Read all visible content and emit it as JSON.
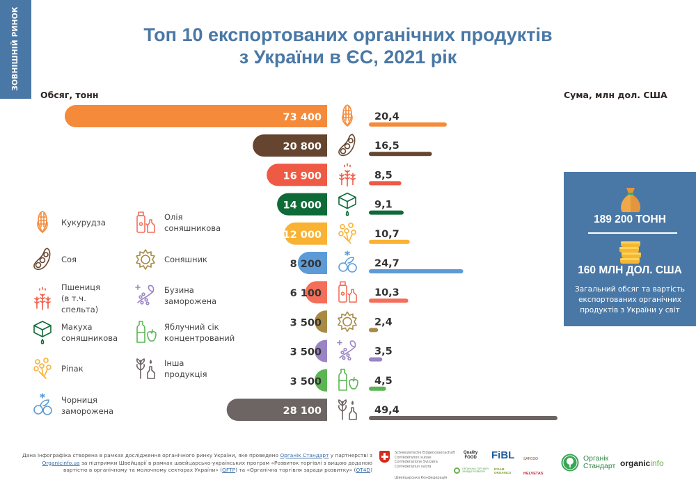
{
  "side_tab": "ЗОВНІШНІЙ РИНОК",
  "title_line1": "Топ 10 експортованих органічних продуктів",
  "title_line2": "з України в ЄС, 2021 рік",
  "chart_data": {
    "type": "bar",
    "title": "Топ 10 експортованих органічних продуктів з України в ЄС, 2021 рік",
    "left_axis_label": "Обсяг, тонн",
    "right_axis_label": "Сума, млн дол. США",
    "categories": [
      "Кукурудза",
      "Соя",
      "Пшениця (в т.ч. спельта)",
      "Макуха соняшникова",
      "Ріпак",
      "Чорниця заморожена",
      "Олія соняшникова",
      "Соняшник",
      "Бузина заморожена",
      "Яблучний сік концентрований",
      "Інша продукція"
    ],
    "icons": [
      "corn-icon",
      "soybean-icon",
      "wheat-icon",
      "oilcake-icon",
      "rapeseed-icon",
      "blueberry-icon",
      "sunflower-oil-icon",
      "sunflower-icon",
      "elderberry-icon",
      "apple-juice-icon",
      "other-products-icon"
    ],
    "colors": [
      "#f48a3a",
      "#65452f",
      "#ef5a45",
      "#0e6b38",
      "#f9b233",
      "#5d9bd8",
      "#f36f5a",
      "#a88a42",
      "#9b84c5",
      "#5bb553",
      "#6c6563"
    ],
    "series": [
      {
        "name": "Обсяг, тонн",
        "values": [
          73400,
          20800,
          16900,
          14000,
          12000,
          8200,
          6100,
          3500,
          3500,
          3500,
          28100
        ],
        "labels": [
          "73 400",
          "20 800",
          "16 900",
          "14 000",
          "12 000",
          "8 200",
          "6 100",
          "3 500",
          "3 500",
          "3 500",
          "28 100"
        ]
      },
      {
        "name": "Сума, млн дол. США",
        "values": [
          20.4,
          16.5,
          8.5,
          9.1,
          10.7,
          24.7,
          10.3,
          2.4,
          3.5,
          4.5,
          49.4
        ],
        "labels": [
          "20,4",
          "16,5",
          "8,5",
          "9,1",
          "10,7",
          "24,7",
          "10,3",
          "2,4",
          "3,5",
          "4,5",
          "49,4"
        ]
      }
    ]
  },
  "legend": {
    "col1": [
      {
        "label": "Кукурудза",
        "icon": "corn-icon",
        "color": "#f48a3a"
      },
      {
        "label": "Соя",
        "icon": "soybean-icon",
        "color": "#65452f"
      },
      {
        "label": "Пшениця\n(в т.ч. спельта)",
        "icon": "wheat-icon",
        "color": "#ef5a45"
      },
      {
        "label": "Макуха\nсоняшникова",
        "icon": "oilcake-icon",
        "color": "#0e6b38"
      },
      {
        "label": "Ріпак",
        "icon": "rapeseed-icon",
        "color": "#f9b233"
      },
      {
        "label": "Чорниця\nзаморожена",
        "icon": "blueberry-icon",
        "color": "#5d9bd8"
      }
    ],
    "col2": [
      {
        "label": "Олія\nсоняшникова",
        "icon": "sunflower-oil-icon",
        "color": "#f36f5a"
      },
      {
        "label": "Соняшник",
        "icon": "sunflower-icon",
        "color": "#a88a42"
      },
      {
        "label": "Бузина\nзаморожена",
        "icon": "elderberry-icon",
        "color": "#9b84c5"
      },
      {
        "label": "Яблучний сік\nконцентрований",
        "icon": "apple-juice-icon",
        "color": "#5bb553"
      },
      {
        "label": "Інша\nпродукція",
        "icon": "other-products-icon",
        "color": "#6c6563"
      }
    ]
  },
  "summary": {
    "volume": "189 200 ТОНН",
    "value": "160 МЛН ДОЛ. США",
    "description": "Загальний обсяг та вартість експортованих органічних продуктів з України у світ",
    "bg_color": "#4a78a6"
  },
  "footer": {
    "t1": "Дана інфографіка створена в рамках дослідження органічного ринку України, яке проведено ",
    "link1": "Органік Стандарт",
    "t2": " у партнерстві з ",
    "link2": "Organicinfo.ua",
    "t3": " за підтримки Швейцарії в рамках швейцарсько-українських програм «Розвиток торгівлі з вищою доданою вартістю в органічному та молочному секторах України» (",
    "link3": "QFTP",
    "t4": ") та «Органічна торгівля заради розвитку» (",
    "link4": "OT4D",
    "t5": ")"
  },
  "logos": {
    "swiss_text": "Schweizerische Eidgenossenschaft\nConfédération suisse\nConfederazione Svizzera\nConfederaziun svizra",
    "swiss_ua": "Швейцарська Конфедерація",
    "quality_food": "Quality\nFOOD",
    "fibl": "FiBL",
    "safoso": "SAFOSO",
    "ot4d": "ОРГАНІЧНА ТОРГІВЛЯ ЗАРАДИ РОЗВИТКУ",
    "ifoam": "IFOAM ORGANICS",
    "helvetas": "HELVETAS",
    "organic_standard": "Органік\nСтандарт",
    "organicinfo_a": "organic",
    "organicinfo_b": "info"
  }
}
